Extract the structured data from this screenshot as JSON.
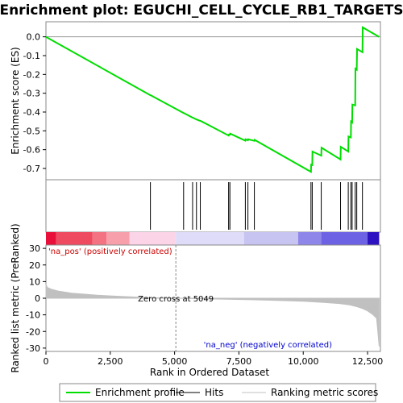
{
  "chart_data": {
    "type": "line",
    "title": "Enrichment plot: EGUCHI_CELL_CYCLE_RB1_TARGETS",
    "es_panel": {
      "ylabel": "Enrichment score (ES)",
      "ylim": [
        -0.76,
        0.08
      ],
      "yticks": [
        0.0,
        -0.1,
        -0.2,
        -0.3,
        -0.4,
        -0.5,
        -0.6,
        -0.7
      ],
      "ytick_labels": [
        "0.0",
        "-0.1",
        "-0.2",
        "-0.3",
        "-0.4",
        "-0.5",
        "-0.6",
        "-0.7"
      ],
      "color": "#00dd00",
      "series": [
        {
          "name": "Enrichment profile",
          "x": [
            0,
            4050,
            4060,
            5350,
            5360,
            5700,
            5710,
            5850,
            5860,
            6000,
            6010,
            7100,
            7110,
            7150,
            7160,
            7750,
            7760,
            7850,
            7860,
            8100,
            8110,
            10300,
            10310,
            10350,
            10360,
            10700,
            10710,
            11450,
            11460,
            11750,
            11760,
            11850,
            11860,
            11900,
            11910,
            12020,
            12030,
            12080,
            12090,
            12300,
            12310,
            12950
          ],
          "y": [
            0.0,
            -0.31,
            -0.31,
            -0.405,
            -0.405,
            -0.43,
            -0.43,
            -0.44,
            -0.44,
            -0.447,
            -0.447,
            -0.525,
            -0.52,
            -0.52,
            -0.515,
            -0.552,
            -0.545,
            -0.55,
            -0.545,
            -0.553,
            -0.548,
            -0.718,
            -0.68,
            -0.682,
            -0.61,
            -0.632,
            -0.59,
            -0.652,
            -0.585,
            -0.61,
            -0.53,
            -0.535,
            -0.45,
            -0.455,
            -0.36,
            -0.365,
            -0.17,
            -0.175,
            -0.065,
            -0.082,
            0.05,
            0.0
          ]
        }
      ]
    },
    "hits_panel": {
      "legend_label": "Hits",
      "positions": [
        4060,
        5350,
        5700,
        5850,
        6000,
        7100,
        7150,
        7750,
        7850,
        8100,
        10300,
        10350,
        10700,
        11450,
        11750,
        11850,
        11900,
        12020,
        12080,
        12300
      ]
    },
    "colorbar": {
      "segments": [
        {
          "x0": 0,
          "x1": 400,
          "color": "#e8103a"
        },
        {
          "x0": 400,
          "x1": 1800,
          "color": "#ee4a60"
        },
        {
          "x0": 1800,
          "x1": 2350,
          "color": "#f37382"
        },
        {
          "x0": 2350,
          "x1": 3250,
          "color": "#f7a0ab"
        },
        {
          "x0": 3250,
          "x1": 5049,
          "color": "#fcd4e8"
        },
        {
          "x0": 5049,
          "x1": 7700,
          "color": "#dedcf8"
        },
        {
          "x0": 7700,
          "x1": 9800,
          "color": "#c8c4f2"
        },
        {
          "x0": 9800,
          "x1": 10700,
          "color": "#8f86ea"
        },
        {
          "x0": 10700,
          "x1": 12500,
          "color": "#6e62e4"
        },
        {
          "x0": 12500,
          "x1": 12950,
          "color": "#2c12c0"
        }
      ]
    },
    "metric_panel": {
      "ylabel": "Ranked list metric (PreRanked)",
      "xlabel": "Rank in Ordered Dataset",
      "ylim": [
        -32,
        32
      ],
      "yticks": [
        30,
        20,
        10,
        0,
        -10,
        -20,
        -30
      ],
      "ytick_labels": [
        "30",
        "20",
        "10",
        "0",
        "-10",
        "-20",
        "-30"
      ],
      "xlim": [
        0,
        13000
      ],
      "xticks": [
        0,
        2500,
        5000,
        7500,
        10000,
        12500
      ],
      "xtick_labels": [
        "0",
        "2,500",
        "5,000",
        "7,500",
        "10,000",
        "12,500"
      ],
      "fill_color": "#c0c0c0",
      "x": [
        0,
        50,
        200,
        500,
        1000,
        2000,
        3000,
        4000,
        5049,
        6000,
        7000,
        8000,
        9000,
        10000,
        10800,
        11400,
        11800,
        12100,
        12300,
        12500,
        12700,
        12850,
        12900,
        12950
      ],
      "y": [
        8.5,
        6.5,
        5.5,
        4.2,
        3.0,
        1.8,
        1.0,
        0.4,
        0.0,
        -0.3,
        -0.6,
        -0.9,
        -1.3,
        -1.8,
        -2.5,
        -3.2,
        -4.0,
        -5.2,
        -6.2,
        -7.6,
        -9.8,
        -12.0,
        -20.0,
        -29.0
      ],
      "zero_cross_label": "Zero cross at 5049",
      "zero_cross": 5049,
      "pos_label": "'na_pos' (positively correlated)",
      "neg_label": "'na_neg' (negatively correlated)",
      "pos_color": "#cc0000",
      "neg_color": "#0000cc"
    },
    "legend": {
      "entries": [
        {
          "label": "Enrichment profile",
          "color": "#00dd00"
        },
        {
          "label": "Hits",
          "color": "#000000"
        },
        {
          "label": "Ranking metric scores",
          "color": "#c0c0c0"
        }
      ]
    }
  }
}
